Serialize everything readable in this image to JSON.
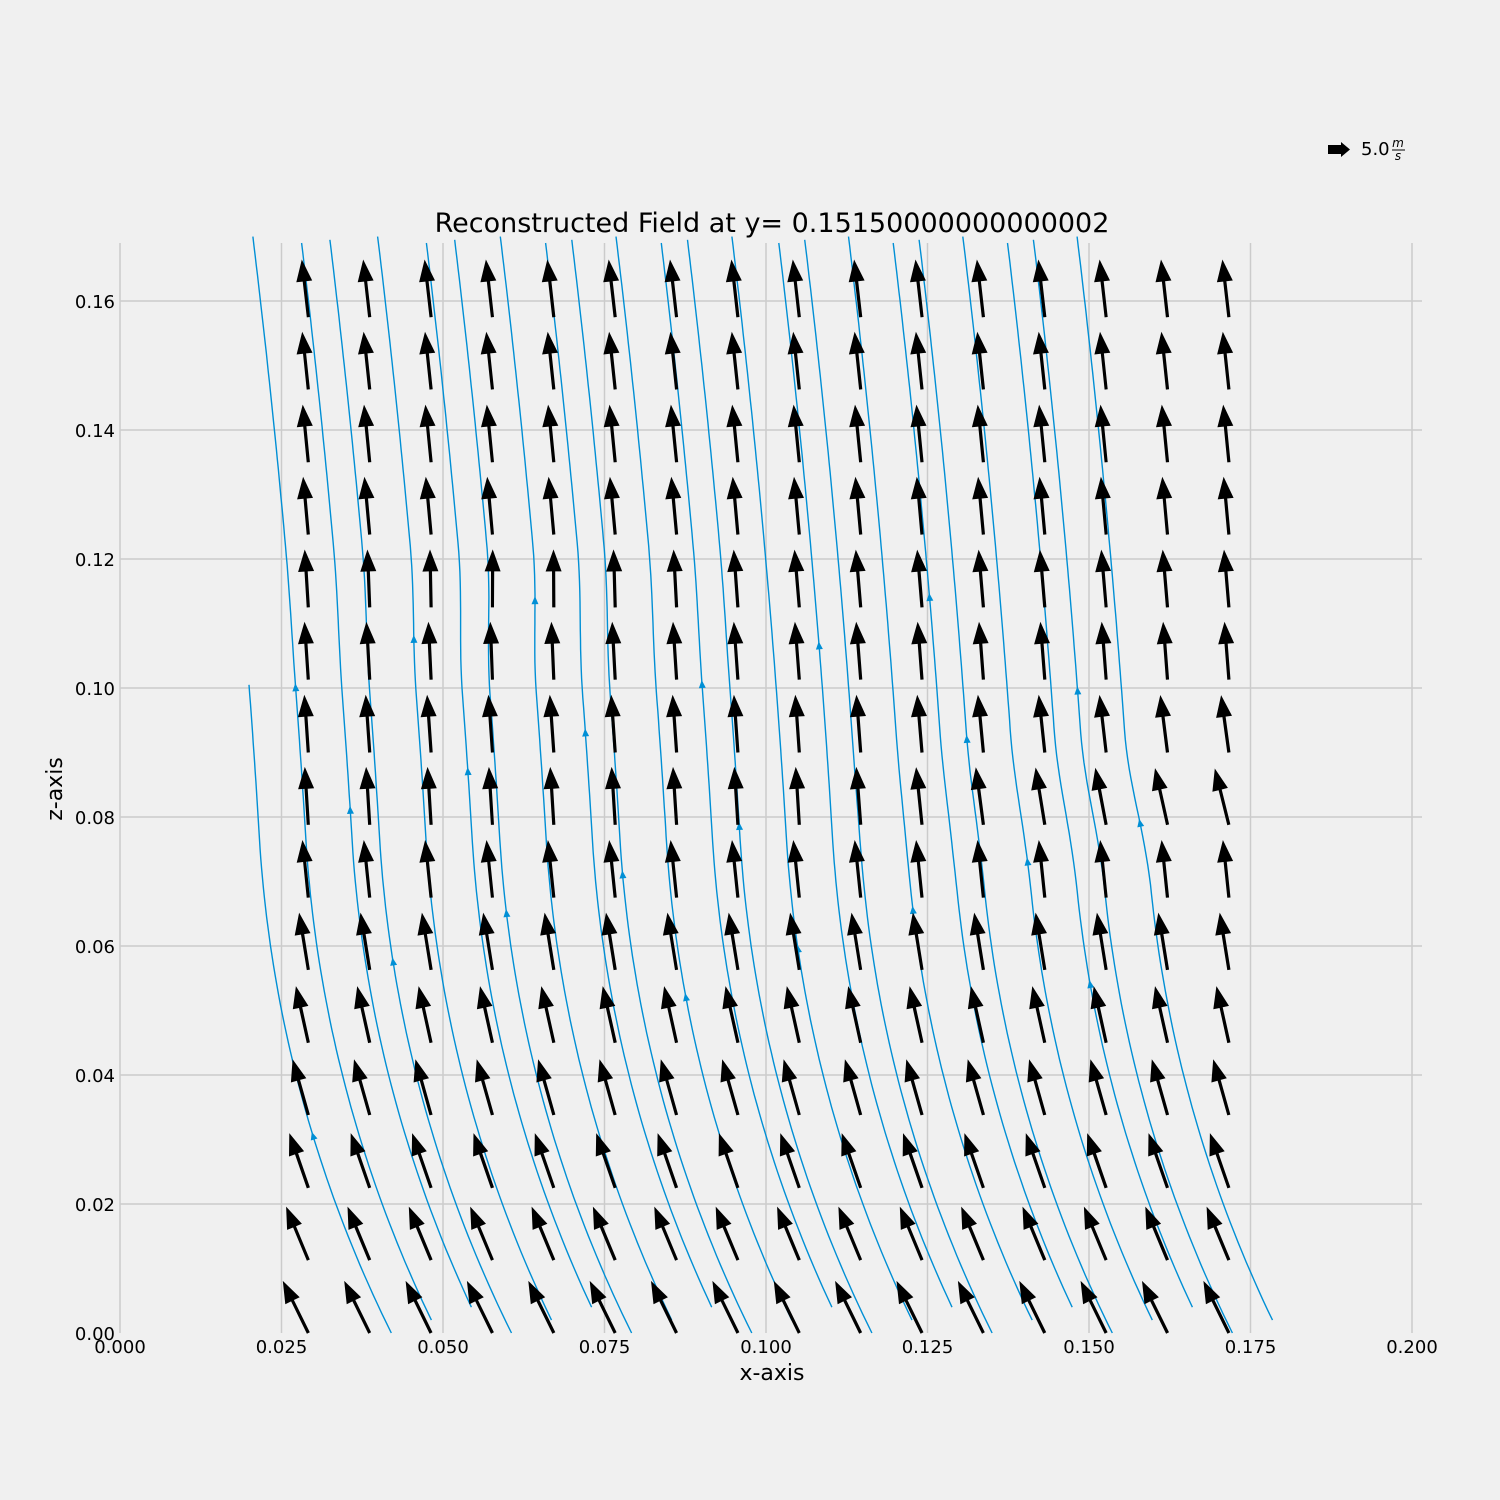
{
  "chart_data": {
    "type": "quiver",
    "title": "Reconstructed Field at y= 0.15150000000000002",
    "xlabel": "x-axis",
    "ylabel": "z-axis",
    "xlim": [
      0.0,
      0.2
    ],
    "ylim": [
      0.0,
      0.169
    ],
    "x_ticks": [
      "0.000",
      "0.025",
      "0.050",
      "0.075",
      "0.100",
      "0.125",
      "0.150",
      "0.175",
      "0.200"
    ],
    "y_ticks": [
      "0.00",
      "0.02",
      "0.04",
      "0.06",
      "0.08",
      "0.10",
      "0.12",
      "0.14",
      "0.16"
    ],
    "grid": true,
    "key": {
      "value": 5.0,
      "label_number": "5.0",
      "label_unit_num": "m",
      "label_unit_den": "s",
      "placement": "top-right"
    },
    "arrow_color": "#000000",
    "streamline_color": "#008fd5",
    "grid_x": [
      0.029,
      0.0385,
      0.048,
      0.0575,
      0.067,
      0.0765,
      0.086,
      0.0955,
      0.105,
      0.1145,
      0.124,
      0.1335,
      0.143,
      0.1525,
      0.162,
      0.1715
    ],
    "grid_z": [
      0.0,
      0.0113,
      0.0225,
      0.0338,
      0.045,
      0.0563,
      0.0675,
      0.0788,
      0.09,
      0.1013,
      0.1125,
      0.1238,
      0.135,
      0.1463,
      0.1575
    ],
    "field_model": {
      "speed_ms": 5.0,
      "u_bottom_ms": -2.2,
      "u_mid_ms": -0.3,
      "u_top_ms": -0.6,
      "w_ms": "positive everywhere (upward)"
    }
  }
}
